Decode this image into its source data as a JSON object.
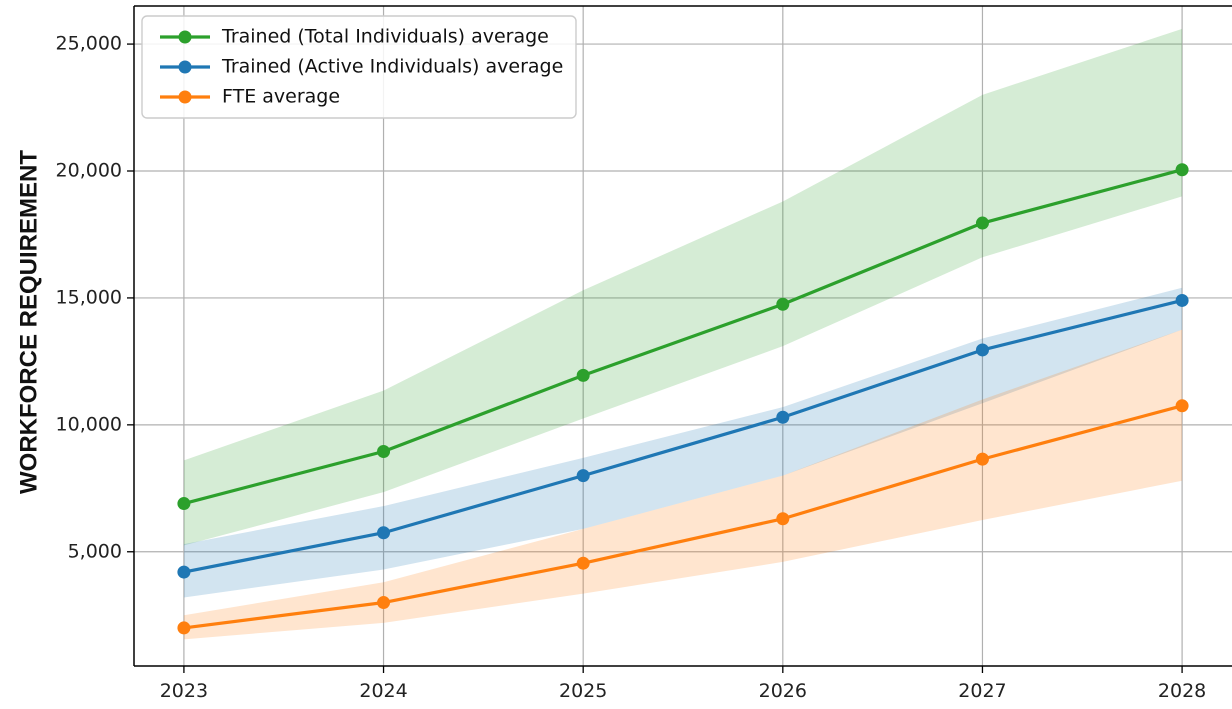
{
  "chart_data": {
    "type": "line",
    "title": "",
    "xlabel": "",
    "ylabel": "WORKFORCE REQUIREMENT",
    "x": [
      "2023",
      "2024",
      "2025",
      "2026",
      "2027",
      "2028"
    ],
    "y_ticks": [
      "5,000",
      "10,000",
      "15,000",
      "20,000",
      "25,000"
    ],
    "y_tick_values": [
      5000,
      10000,
      15000,
      20000,
      25000
    ],
    "xlim": [
      2022.75,
      2028.25
    ],
    "ylim": [
      500,
      26500
    ],
    "grid": true,
    "legend_position": "top-left",
    "series": [
      {
        "name": "Trained (Total Individuals) average",
        "color": "#2ca02c",
        "band_color": "#2ca02c",
        "values": [
          6900,
          8950,
          11950,
          14750,
          17950,
          20050
        ],
        "band_low": [
          5250,
          7350,
          10250,
          13100,
          16600,
          19000
        ],
        "band_high": [
          8600,
          11350,
          15300,
          18800,
          23000,
          25600
        ]
      },
      {
        "name": "Trained (Active Individuals) average",
        "color": "#1f77b4",
        "band_color": "#1f77b4",
        "values": [
          4200,
          5750,
          8000,
          10300,
          12950,
          14900
        ],
        "band_low": [
          3200,
          4300,
          5900,
          8000,
          10850,
          13750
        ],
        "band_high": [
          5300,
          6800,
          8700,
          10700,
          13400,
          15400
        ]
      },
      {
        "name": "FTE average",
        "color": "#ff7f0e",
        "band_color": "#ff7f0e",
        "values": [
          2000,
          3000,
          4550,
          6300,
          8650,
          10750
        ],
        "band_low": [
          1550,
          2200,
          3350,
          4600,
          6250,
          7800
        ],
        "band_high": [
          2500,
          3800,
          5900,
          8000,
          11000,
          13750
        ]
      }
    ]
  }
}
